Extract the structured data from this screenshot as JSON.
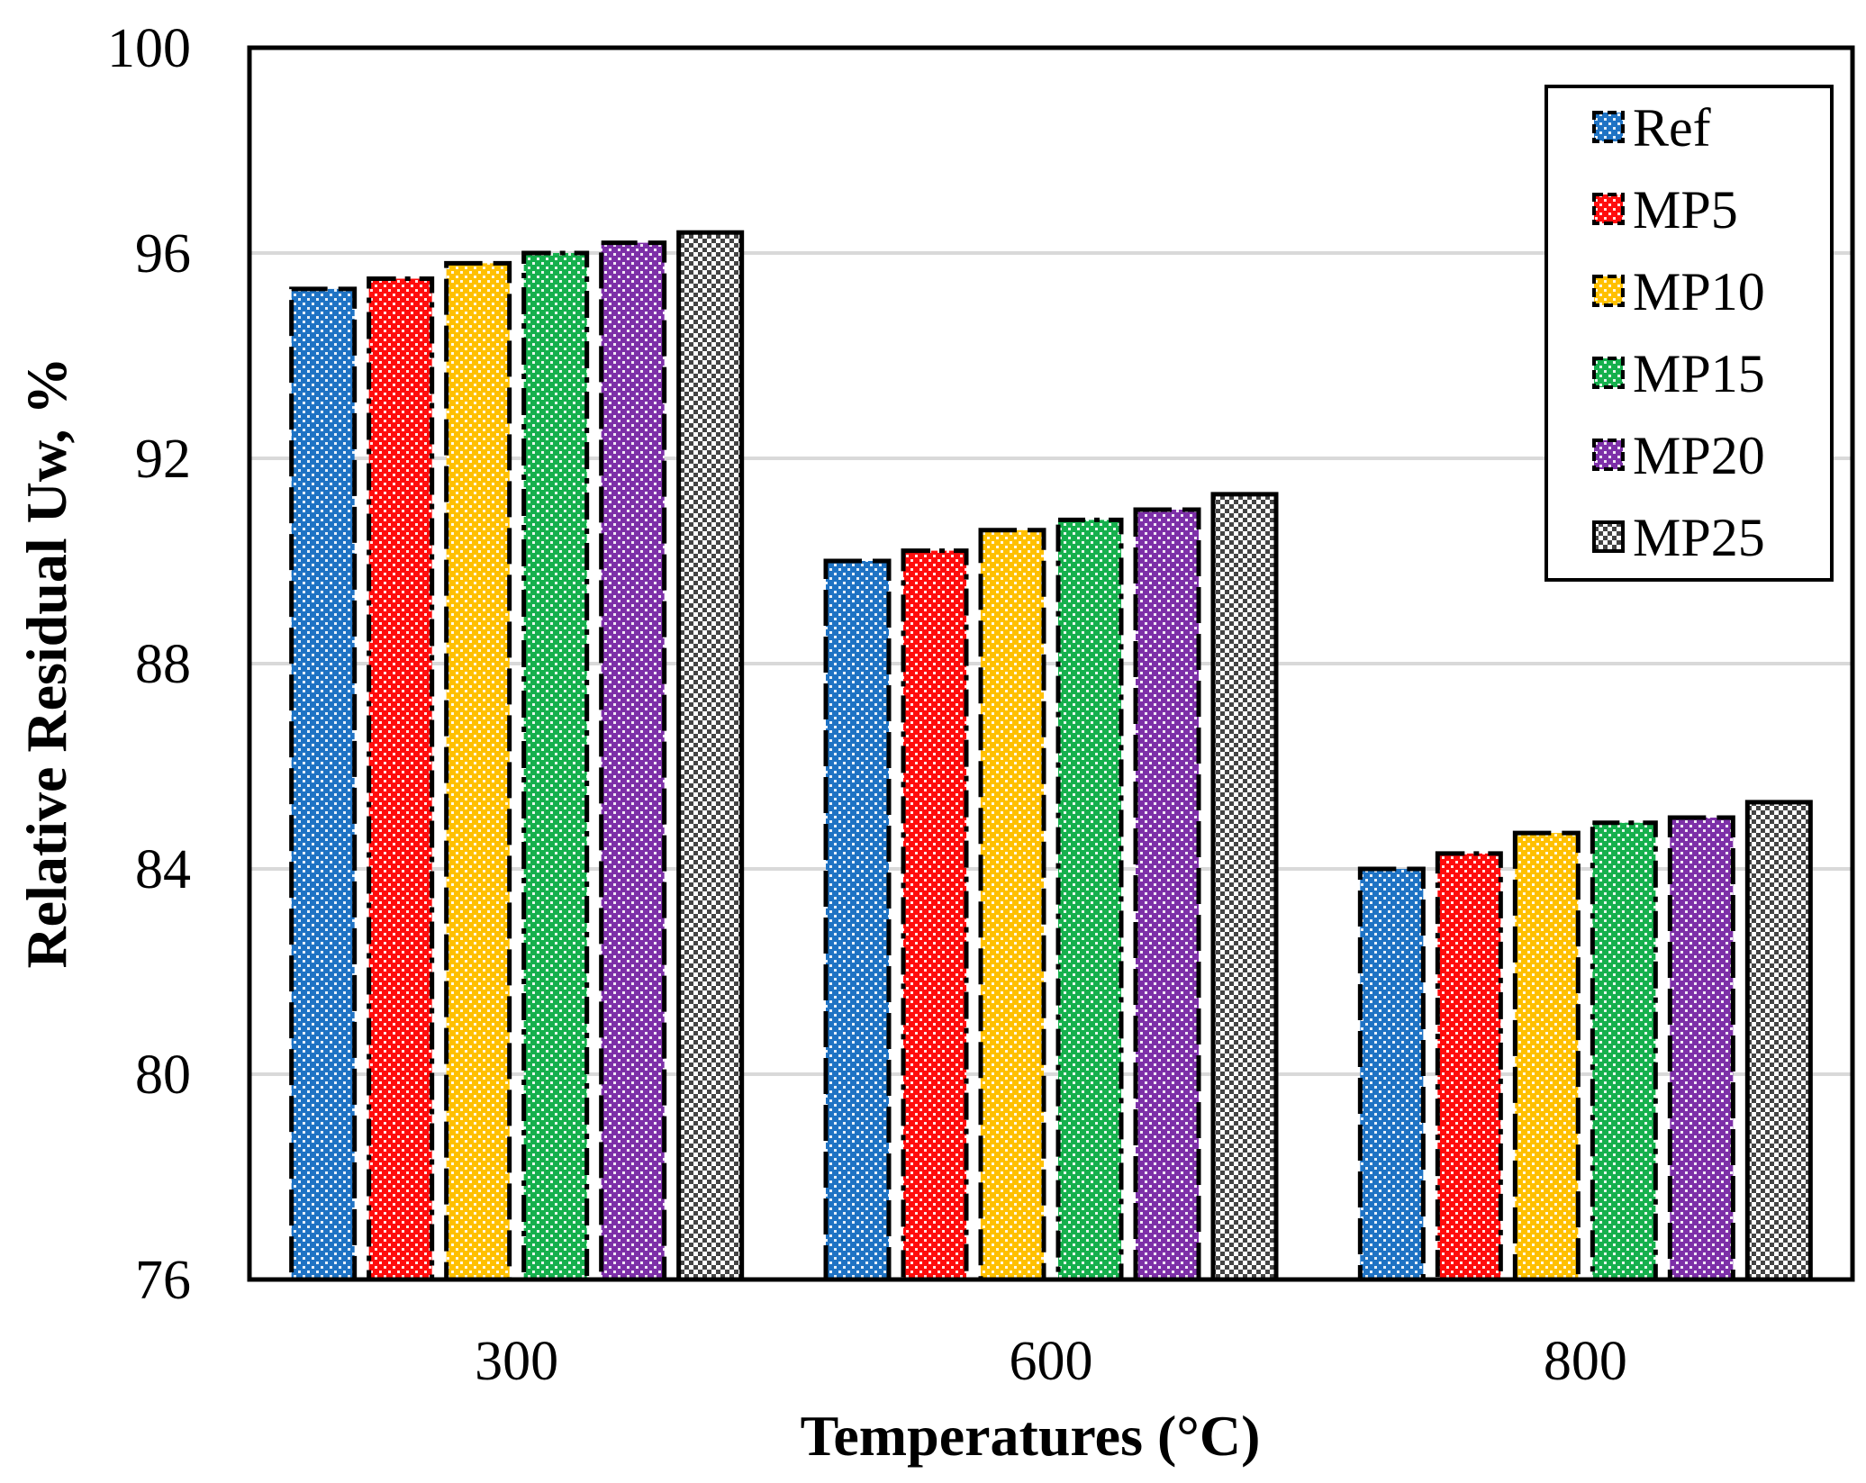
{
  "chart_data": {
    "type": "bar",
    "title": "",
    "xlabel": "Temperatures (°C)",
    "ylabel": "Relative Residual Uw, %",
    "categories": [
      "300",
      "600",
      "800"
    ],
    "ylim": [
      76,
      100
    ],
    "yticks": [
      76,
      80,
      84,
      88,
      92,
      96,
      100
    ],
    "grid": true,
    "legend_position": "top-right",
    "series": [
      {
        "name": "Ref",
        "values": [
          95.3,
          90.0,
          84.0
        ],
        "color": "#1f73c4",
        "fill": "dots-white"
      },
      {
        "name": "MP5",
        "values": [
          95.5,
          90.2,
          84.3
        ],
        "color": "#ff0d0d",
        "fill": "dots-white"
      },
      {
        "name": "MP10",
        "values": [
          95.8,
          90.6,
          84.7
        ],
        "color": "#ffc000",
        "fill": "dots-white"
      },
      {
        "name": "MP15",
        "values": [
          96.0,
          90.8,
          84.9
        ],
        "color": "#16b04d",
        "fill": "dots-white"
      },
      {
        "name": "MP20",
        "values": [
          96.2,
          91.0,
          85.0
        ],
        "color": "#7d30a8",
        "fill": "dots-white"
      },
      {
        "name": "MP25",
        "values": [
          96.4,
          91.3,
          85.3
        ],
        "color": "#444444",
        "fill": "checker"
      }
    ]
  }
}
